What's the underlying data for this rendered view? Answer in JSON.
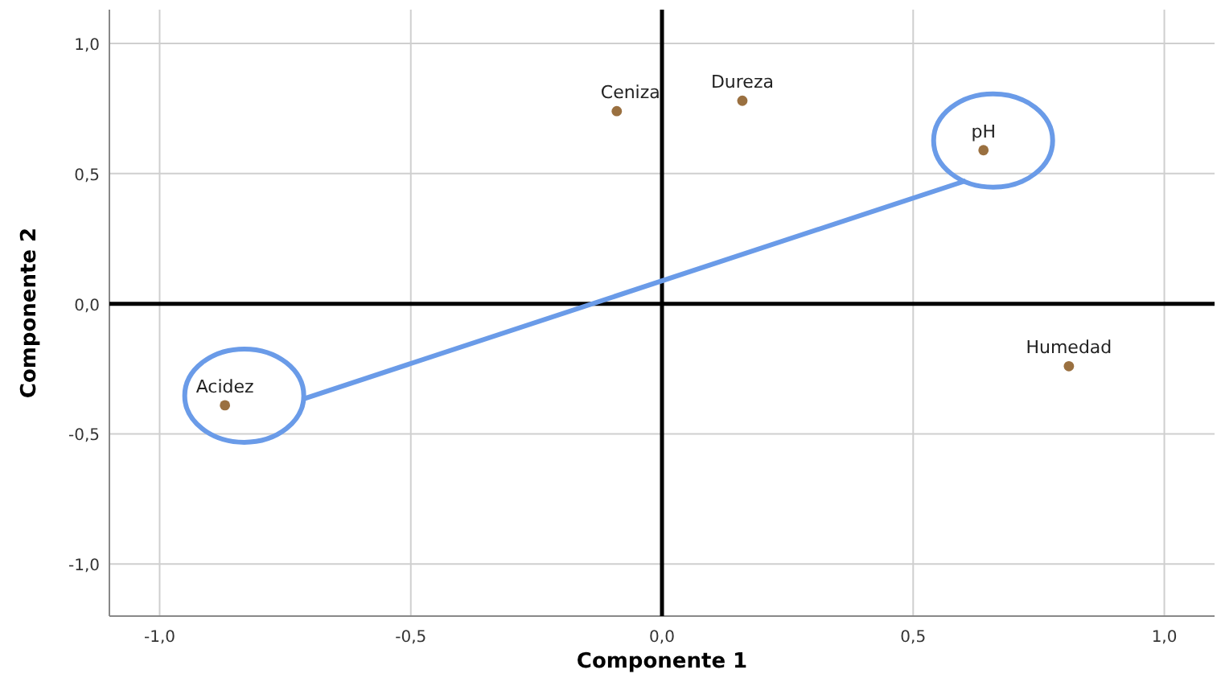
{
  "chart_data": {
    "type": "scatter",
    "xlabel": "Componente 1",
    "ylabel": "Componente 2",
    "xlim": [
      -1.1,
      1.1
    ],
    "ylim": [
      -1.2,
      1.13
    ],
    "xticks": [
      {
        "value": -1,
        "label": "-1,0"
      },
      {
        "value": -0.5,
        "label": "-0,5"
      },
      {
        "value": 0,
        "label": "0,0"
      },
      {
        "value": 0.5,
        "label": "0,5"
      },
      {
        "value": 1,
        "label": "1,0"
      }
    ],
    "yticks": [
      {
        "value": -1,
        "label": "-1,0"
      },
      {
        "value": -0.5,
        "label": "-0,5"
      },
      {
        "value": 0,
        "label": "0,0"
      },
      {
        "value": 0.5,
        "label": "0,5"
      },
      {
        "value": 1,
        "label": "1,0"
      }
    ],
    "grid": true,
    "marker": "circle",
    "series": [
      {
        "name": "Ceniza",
        "color": "#9a7040",
        "x": [
          -0.09
        ],
        "values": [
          0.74
        ]
      },
      {
        "name": "Dureza",
        "color": "#9a7040",
        "x": [
          0.16
        ],
        "values": [
          0.78
        ]
      },
      {
        "name": "pH",
        "color": "#9a7040",
        "x": [
          0.64
        ],
        "values": [
          0.59
        ]
      },
      {
        "name": "Humedad",
        "color": "#9a7040",
        "x": [
          0.81
        ],
        "values": [
          -0.24
        ]
      },
      {
        "name": "Acidez",
        "color": "#9a7040",
        "x": [
          -0.87
        ],
        "values": [
          -0.39
        ]
      }
    ]
  }
}
